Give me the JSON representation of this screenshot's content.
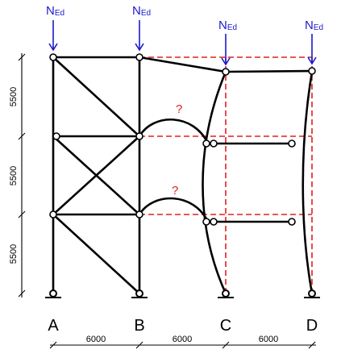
{
  "loads": {
    "symbol_main": "N",
    "symbol_sub": "Ed",
    "color": "#1a1acc"
  },
  "supports": {
    "labels": [
      "A",
      "B",
      "C",
      "D"
    ]
  },
  "bay_widths": [
    "6000",
    "6000",
    "6000"
  ],
  "storey_heights": [
    "5500",
    "5500",
    "5500"
  ],
  "unknown_marks": [
    "?",
    "?"
  ],
  "colors": {
    "frame": "#000000",
    "deformed_outline": "#e02020",
    "question": "#e02020",
    "load_arrow": "#1a1acc"
  }
}
